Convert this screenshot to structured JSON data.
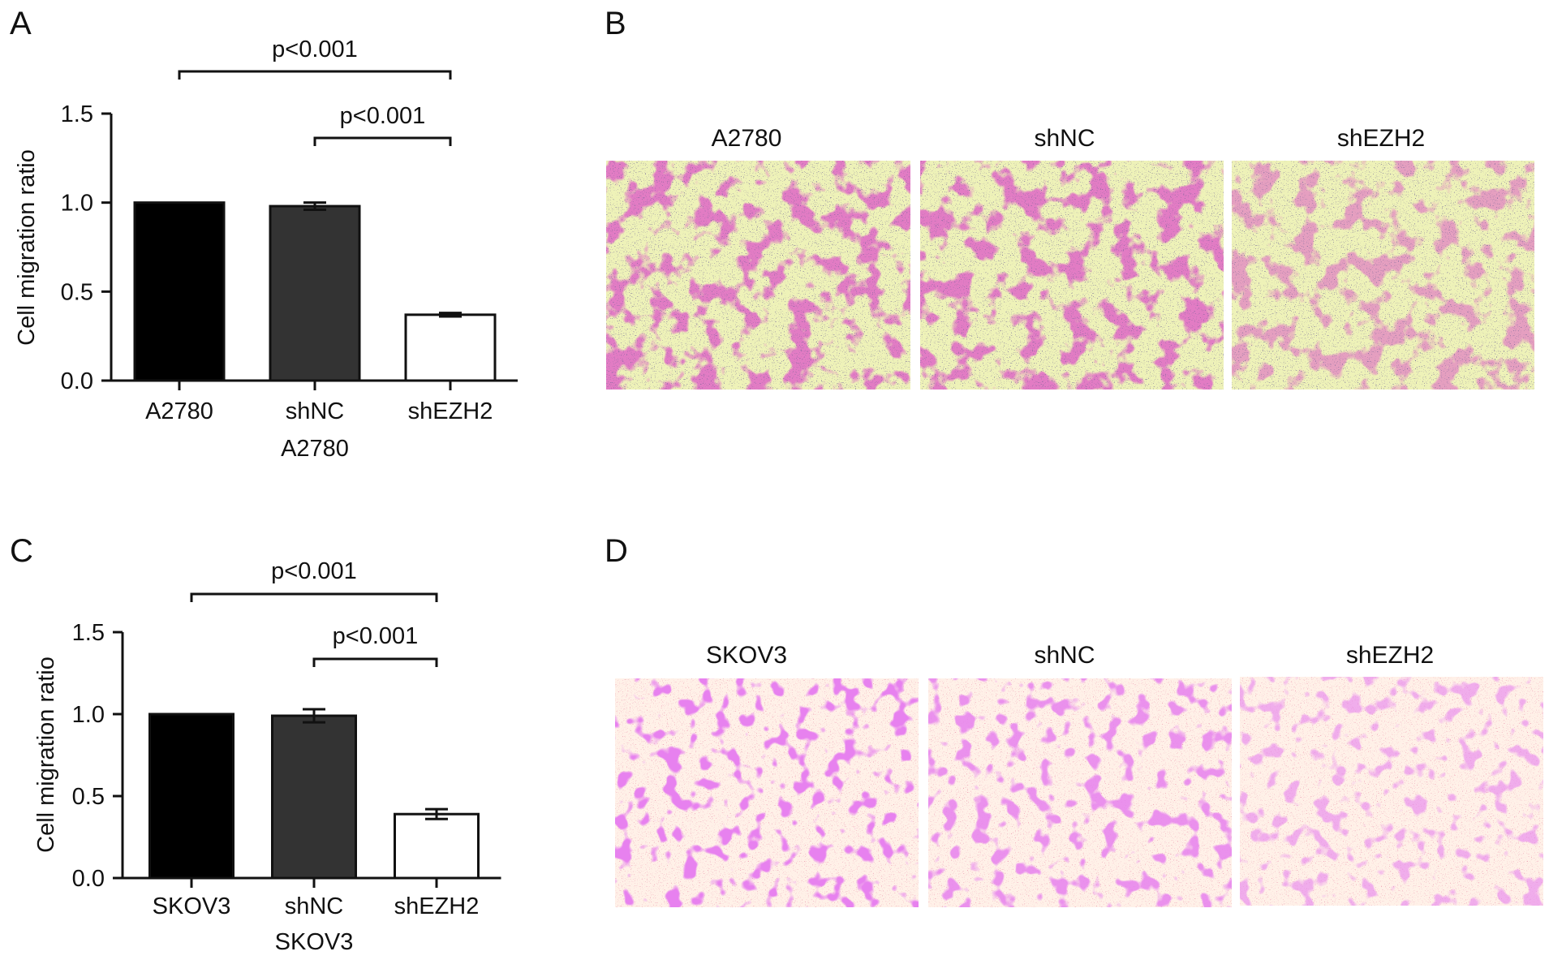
{
  "panels": {
    "A": {
      "letter": "A"
    },
    "B": {
      "letter": "B",
      "images": [
        "A2780",
        "shNC",
        "shEZH2"
      ]
    },
    "C": {
      "letter": "C"
    },
    "D": {
      "letter": "D",
      "images": [
        "SKOV3",
        "shNC",
        "shEZH2"
      ]
    }
  },
  "colors": {
    "bar_fills": [
      "#000000",
      "#333333",
      "#ffffff"
    ],
    "stain_a2780": "#c0308c",
    "bg_a2780": "#eef2b8",
    "stain_skov3": "#c83ad0",
    "bg_skov3": "#fff1e8"
  },
  "chart_data": [
    {
      "type": "bar",
      "panel": "A",
      "ylabel": "Cell migration ratio",
      "xlabel": "A2780",
      "ylim": [
        0,
        1.5
      ],
      "yticks": [
        "0.0",
        "0.5",
        "1.0",
        "1.5"
      ],
      "categories": [
        "A2780",
        "shNC",
        "shEZH2"
      ],
      "values": [
        1.0,
        0.98,
        0.37
      ],
      "errors": [
        0.0,
        0.02,
        0.01
      ],
      "significance": [
        {
          "from": 0,
          "to": 2,
          "label": "p<0.001"
        },
        {
          "from": 1,
          "to": 2,
          "label": "p<0.001"
        }
      ]
    },
    {
      "type": "bar",
      "panel": "C",
      "ylabel": "Cell migration ratio",
      "xlabel": "SKOV3",
      "ylim": [
        0,
        1.5
      ],
      "yticks": [
        "0.0",
        "0.5",
        "1.0",
        "1.5"
      ],
      "categories": [
        "SKOV3",
        "shNC",
        "shEZH2"
      ],
      "values": [
        1.0,
        0.99,
        0.39
      ],
      "errors": [
        0.0,
        0.04,
        0.03
      ],
      "significance": [
        {
          "from": 0,
          "to": 2,
          "label": "p<0.001"
        },
        {
          "from": 1,
          "to": 2,
          "label": "p<0.001"
        }
      ]
    }
  ]
}
